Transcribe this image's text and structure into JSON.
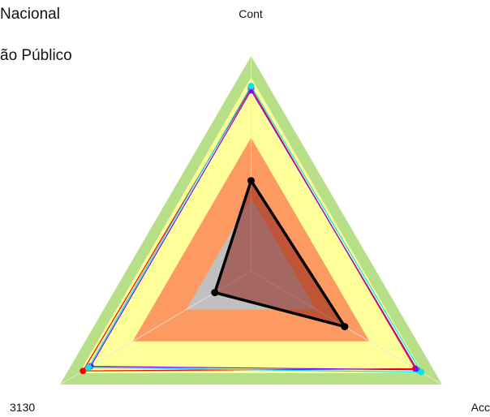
{
  "header": {
    "line1": "Nacional",
    "line2": "ão Público"
  },
  "chart_data": {
    "type": "radar",
    "axes": [
      "Cont",
      "Acc",
      "3130"
    ],
    "range": [
      0,
      1
    ],
    "bands": [
      {
        "from": 0.9,
        "to": 1.0,
        "color": "#b7df88"
      },
      {
        "from": 0.62,
        "to": 0.9,
        "color": "#ffff99"
      },
      {
        "from": 0.34,
        "to": 0.62,
        "color": "#fd9a61"
      },
      {
        "from": 0.0,
        "to": 0.34,
        "color": "#c0c0c0"
      }
    ],
    "series": [
      {
        "color": "#ff0000",
        "values": [
          0.85,
          0.86,
          0.88
        ],
        "width": 1.2,
        "marker": 6
      },
      {
        "color": "#7f00ff",
        "values": [
          0.84,
          0.87,
          0.84
        ],
        "width": 1.2,
        "marker": 6
      },
      {
        "color": "#00e5ee",
        "values": [
          0.86,
          0.89,
          0.85
        ],
        "width": 1.2,
        "marker": 6
      },
      {
        "color": "#000000",
        "values": [
          0.42,
          0.49,
          0.19
        ],
        "width": 3.5,
        "marker": 7,
        "fill": "rgba(140,30,20,0.55)"
      }
    ]
  }
}
